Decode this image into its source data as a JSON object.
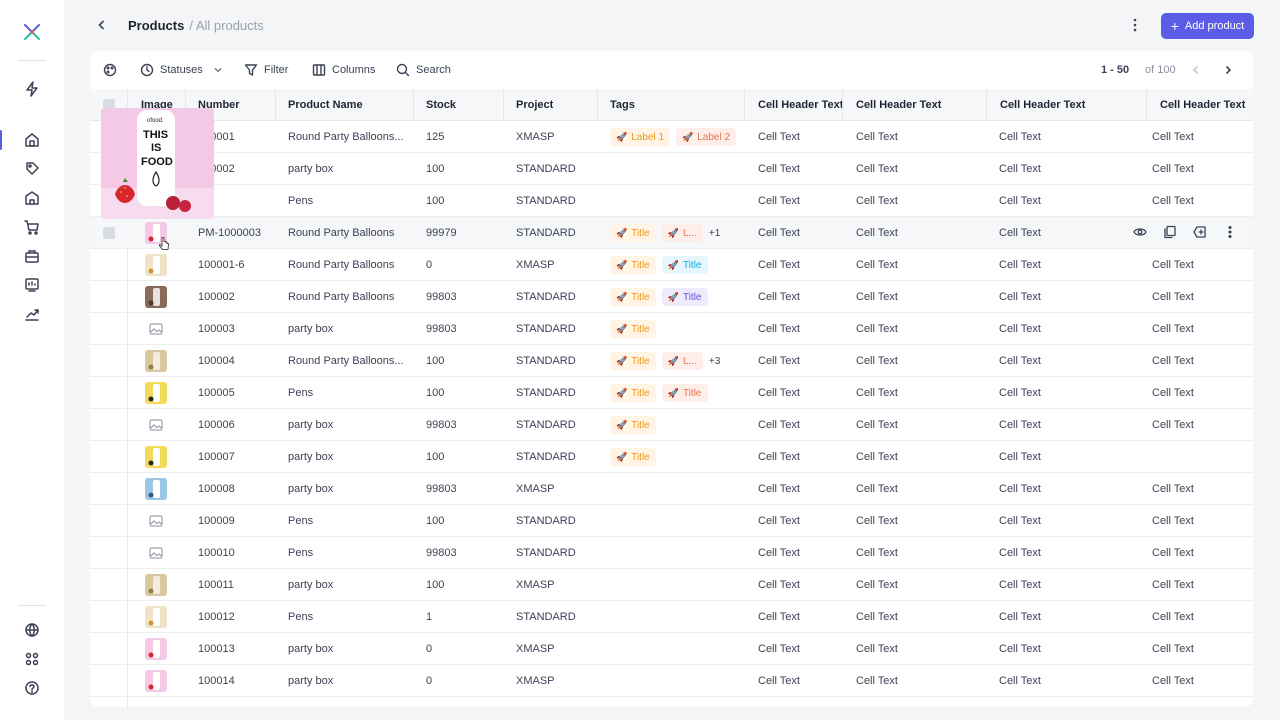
{
  "header": {
    "title": "Products",
    "subtitle": "/ All products",
    "add_button": "Add product"
  },
  "toolbar": {
    "statuses": "Statuses",
    "filter": "Filter",
    "columns": "Columns",
    "search": "Search",
    "pager_range": "1 - 50",
    "pager_total": "of 100"
  },
  "columns": {
    "image": "Image",
    "number": "Number",
    "product_name": "Product Name",
    "stock": "Stock",
    "project": "Project",
    "tags": "Tags",
    "extra1": "Cell Header Text",
    "extra2": "Cell Header Text",
    "extra3": "Cell Header Text",
    "extra4": "Cell Header Text"
  },
  "preview_image": {
    "brand": "ofood.",
    "line1": "THIS",
    "line2": "IS",
    "line3": "FOOD"
  },
  "rows": [
    {
      "number": "100001",
      "name": "Round Party Balloons...",
      "stock": "125",
      "project": "XMASP",
      "tags": [
        {
          "label": "Label 1",
          "color": "orange"
        },
        {
          "label": "Label 2",
          "color": "salmon"
        }
      ],
      "more": "",
      "c1": "Cell Text",
      "c2": "Cell Text",
      "c3": "Cell Text",
      "c4": "Cell Text",
      "thumb": "pink"
    },
    {
      "number": "100002",
      "name": "party box",
      "stock": "100",
      "project": "STANDARD",
      "tags": [],
      "more": "",
      "c1": "Cell Text",
      "c2": "Cell Text",
      "c3": "Cell Text",
      "c4": "Cell Text",
      "thumb": "pink"
    },
    {
      "number": "26",
      "name": "Pens",
      "stock": "100",
      "project": "STANDARD",
      "tags": [],
      "more": "",
      "c1": "Cell Text",
      "c2": "Cell Text",
      "c3": "Cell Text",
      "c4": "Cell Text",
      "thumb": "pink"
    },
    {
      "number": "PM-1000003",
      "name": "Round Party Balloons",
      "stock": "99979",
      "project": "STANDARD",
      "tags": [
        {
          "label": "Title",
          "color": "orange"
        },
        {
          "label": "L...",
          "color": "salmon"
        }
      ],
      "more": "+1",
      "c1": "Cell Text",
      "c2": "Cell Text",
      "c3": "Cell Text",
      "c4": "",
      "thumb": "pink"
    },
    {
      "number": "100001-6",
      "name": "Round Party Balloons",
      "stock": "0",
      "project": "XMASP",
      "tags": [
        {
          "label": "Title",
          "color": "orange"
        },
        {
          "label": "Title",
          "color": "blue"
        }
      ],
      "more": "",
      "c1": "Cell Text",
      "c2": "Cell Text",
      "c3": "Cell Text",
      "c4": "Cell Text",
      "thumb": "cream"
    },
    {
      "number": "100002",
      "name": "Round Party Balloons",
      "stock": "99803",
      "project": "STANDARD",
      "tags": [
        {
          "label": "Title",
          "color": "orange"
        },
        {
          "label": "Title",
          "color": "purple"
        }
      ],
      "more": "",
      "c1": "Cell Text",
      "c2": "Cell Text",
      "c3": "Cell Text",
      "c4": "Cell Text",
      "thumb": "brown"
    },
    {
      "number": "100003",
      "name": "party box",
      "stock": "99803",
      "project": "STANDARD",
      "tags": [
        {
          "label": "Title",
          "color": "orange"
        }
      ],
      "more": "",
      "c1": "Cell Text",
      "c2": "Cell Text",
      "c3": "Cell Text",
      "c4": "Cell Text",
      "thumb": "placeholder"
    },
    {
      "number": "100004",
      "name": "Round Party Balloons...",
      "stock": "100",
      "project": "STANDARD",
      "tags": [
        {
          "label": "Title",
          "color": "orange"
        },
        {
          "label": "L...",
          "color": "salmon"
        }
      ],
      "more": "+3",
      "c1": "Cell Text",
      "c2": "Cell Text",
      "c3": "Cell Text",
      "c4": "Cell Text",
      "thumb": "tan"
    },
    {
      "number": "100005",
      "name": "Pens",
      "stock": "100",
      "project": "STANDARD",
      "tags": [
        {
          "label": "Title",
          "color": "orange"
        },
        {
          "label": "Title",
          "color": "salmon"
        }
      ],
      "more": "",
      "c1": "Cell Text",
      "c2": "Cell Text",
      "c3": "Cell Text",
      "c4": "Cell Text",
      "thumb": "yellow"
    },
    {
      "number": "100006",
      "name": "party box",
      "stock": "99803",
      "project": "STANDARD",
      "tags": [
        {
          "label": "Title",
          "color": "orange"
        }
      ],
      "more": "",
      "c1": "Cell Text",
      "c2": "Cell Text",
      "c3": "Cell Text",
      "c4": "Cell Text",
      "thumb": "placeholder"
    },
    {
      "number": "100007",
      "name": "party box",
      "stock": "100",
      "project": "STANDARD",
      "tags": [
        {
          "label": "Title",
          "color": "orange"
        }
      ],
      "more": "",
      "c1": "Cell Text",
      "c2": "Cell Text",
      "c3": "Cell Text",
      "c4": "",
      "thumb": "yellow"
    },
    {
      "number": "100008",
      "name": "party box",
      "stock": "99803",
      "project": "XMASP",
      "tags": [],
      "more": "",
      "c1": "Cell Text",
      "c2": "Cell Text",
      "c3": "Cell Text",
      "c4": "Cell Text",
      "thumb": "blue"
    },
    {
      "number": "100009",
      "name": "Pens",
      "stock": "100",
      "project": "STANDARD",
      "tags": [],
      "more": "",
      "c1": "Cell Text",
      "c2": "Cell Text",
      "c3": "Cell Text",
      "c4": "Cell Text",
      "thumb": "placeholder"
    },
    {
      "number": "100010",
      "name": "Pens",
      "stock": "99803",
      "project": "STANDARD",
      "tags": [],
      "more": "",
      "c1": "Cell Text",
      "c2": "Cell Text",
      "c3": "Cell Text",
      "c4": "Cell Text",
      "thumb": "placeholder"
    },
    {
      "number": "100011",
      "name": "party box",
      "stock": "100",
      "project": "XMASP",
      "tags": [],
      "more": "",
      "c1": "Cell Text",
      "c2": "Cell Text",
      "c3": "Cell Text",
      "c4": "Cell Text",
      "thumb": "tan"
    },
    {
      "number": "100012",
      "name": "Pens",
      "stock": "1",
      "project": "STANDARD",
      "tags": [],
      "more": "",
      "c1": "Cell Text",
      "c2": "Cell Text",
      "c3": "Cell Text",
      "c4": "Cell Text",
      "thumb": "cream"
    },
    {
      "number": "100013",
      "name": "party box",
      "stock": "0",
      "project": "XMASP",
      "tags": [],
      "more": "",
      "c1": "Cell Text",
      "c2": "Cell Text",
      "c3": "Cell Text",
      "c4": "Cell Text",
      "thumb": "pink"
    },
    {
      "number": "100014",
      "name": "party box",
      "stock": "0",
      "project": "XMASP",
      "tags": [],
      "more": "",
      "c1": "Cell Text",
      "c2": "Cell Text",
      "c3": "Cell Text",
      "c4": "Cell Text",
      "thumb": "pink"
    }
  ],
  "hovered_row": 3,
  "colors": {
    "accent": "#5b5de8",
    "tag_orange": "#f29a1a",
    "tag_blue": "#1aa7dc",
    "tag_purple": "#6a4ee0",
    "tag_salmon": "#e8744a"
  }
}
